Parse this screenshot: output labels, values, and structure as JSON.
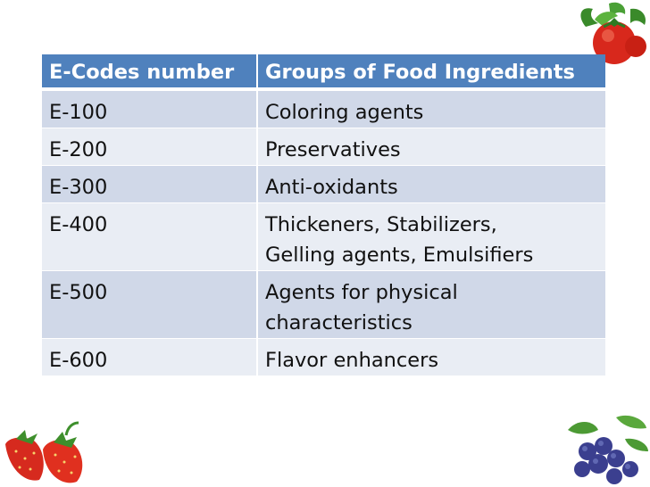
{
  "table": {
    "headers": [
      "E-Codes number",
      "Groups of Food Ingredients"
    ],
    "rows": [
      {
        "code": "E-100",
        "group": [
          "Coloring agents"
        ]
      },
      {
        "code": "E-200",
        "group": [
          "Preservatives"
        ]
      },
      {
        "code": "E-300",
        "group": [
          "Anti-oxidants"
        ]
      },
      {
        "code": "E-400",
        "group": [
          "Thickeners, Stabilizers,",
          "Gelling agents, Emulsifiers"
        ]
      },
      {
        "code": "E-500",
        "group": [
          "Agents for physical",
          "characteristics"
        ]
      },
      {
        "code": "E-600",
        "group": [
          "Flavor enhancers"
        ]
      }
    ]
  },
  "decorations": [
    "tomato-illustration",
    "strawberry-illustration",
    "blueberry-illustration"
  ],
  "colors": {
    "header_bg": "#4f81bd",
    "row_dark": "#d0d8e8",
    "row_light": "#e9edf4"
  }
}
